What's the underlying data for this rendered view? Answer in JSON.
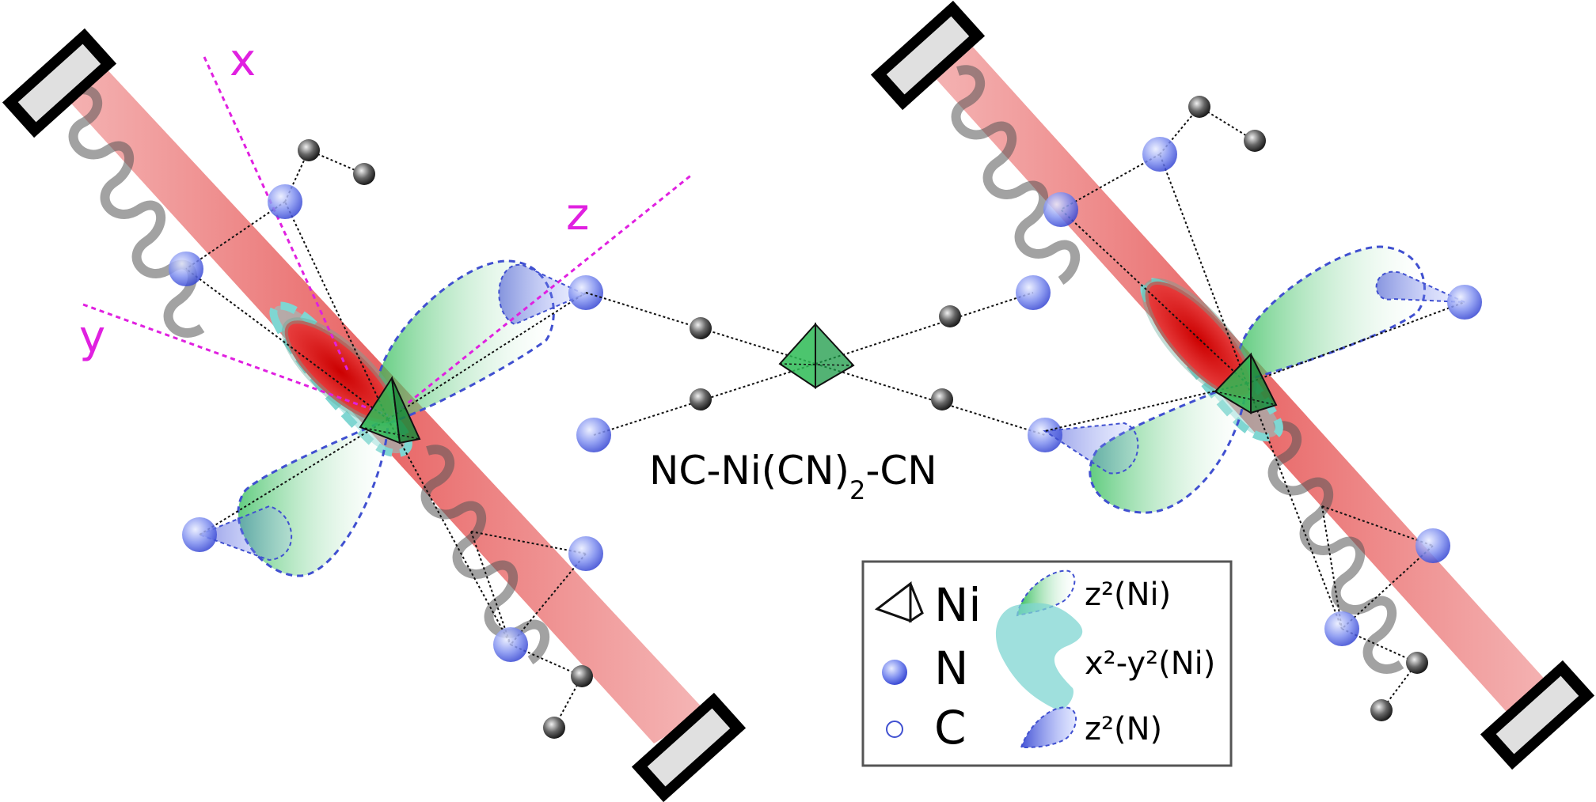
{
  "axes": {
    "x": "x",
    "y": "y",
    "z": "z"
  },
  "molecule_label": {
    "prefix": "NC-Ni(CN)",
    "subscript": "2",
    "suffix": "-CN"
  },
  "legend": {
    "ni": "Ni",
    "n": "N",
    "c": "C",
    "z2_ni": "z²(Ni)",
    "x2y2_ni": "x²-y²(Ni)",
    "z2_n": "z²(N)"
  },
  "colors": {
    "beam": "#e85c5c",
    "nitrogen": "#4a5ae8",
    "carbon": "#222222",
    "z2_orbital": "#3ec46a",
    "x2y2_orbital": "#7fd6d2",
    "axis": "#e020e0",
    "mirror": "#000000"
  }
}
